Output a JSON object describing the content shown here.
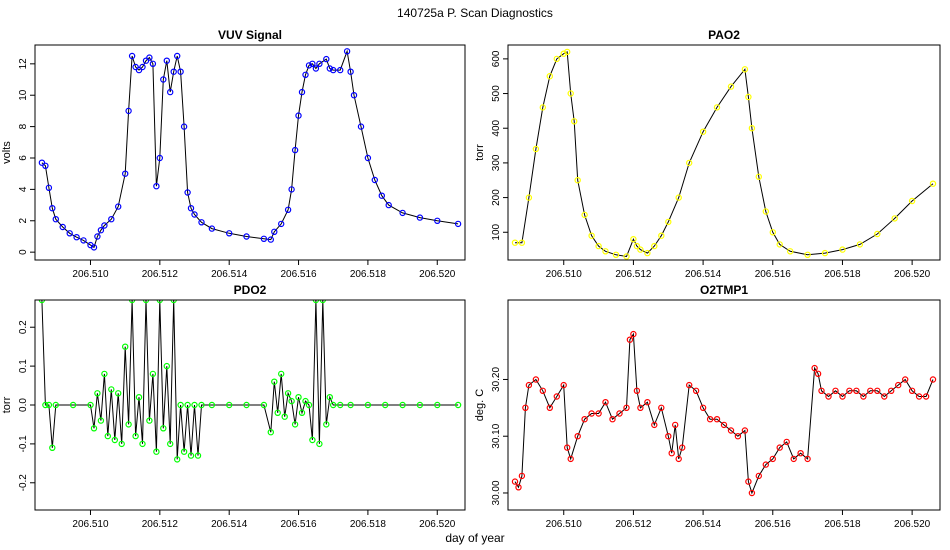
{
  "figure": {
    "title": "140725a   P. Scan Diagnostics",
    "xlabel": "day of year"
  },
  "colors": {
    "background": "#ffffff",
    "axis": "#000000",
    "line": "#000000",
    "vuv": "#0000ff",
    "pao2": "#ffff00",
    "pdo2": "#00ff00",
    "o2tmp1": "#ff0000"
  },
  "chart_data": [
    {
      "id": "vuv",
      "type": "line",
      "title": "VUV Signal",
      "ylabel": "volts",
      "xlim": [
        206.5084,
        206.5208
      ],
      "ylim": [
        -0.5,
        13.2
      ],
      "xticks": [
        206.51,
        206.512,
        206.514,
        206.516,
        206.518,
        206.52
      ],
      "xtick_labels": [
        "206.510",
        "206.512",
        "206.514",
        "206.516",
        "206.518",
        "206.520"
      ],
      "yticks": [
        0,
        2,
        4,
        6,
        8,
        10,
        12
      ],
      "ytick_labels": [
        "0",
        "2",
        "4",
        "6",
        "8",
        "10",
        "12"
      ],
      "marker": "circle",
      "color": "#0000ff",
      "x": [
        206.5086,
        206.5087,
        206.5088,
        206.5089,
        206.509,
        206.5092,
        206.5094,
        206.5096,
        206.5098,
        206.51,
        206.5101,
        206.5102,
        206.5103,
        206.5104,
        206.5106,
        206.5108,
        206.511,
        206.5111,
        206.5112,
        206.5113,
        206.5114,
        206.5115,
        206.5116,
        206.5117,
        206.5118,
        206.5119,
        206.512,
        206.5121,
        206.5122,
        206.5123,
        206.5124,
        206.5125,
        206.5126,
        206.5127,
        206.5128,
        206.5129,
        206.513,
        206.5132,
        206.5135,
        206.514,
        206.5145,
        206.515,
        206.5152,
        206.5153,
        206.5155,
        206.5157,
        206.5158,
        206.5159,
        206.516,
        206.5161,
        206.5162,
        206.5163,
        206.5164,
        206.5165,
        206.5166,
        206.5168,
        206.5169,
        206.517,
        206.5172,
        206.5174,
        206.5175,
        206.5176,
        206.5178,
        206.518,
        206.5182,
        206.5184,
        206.5186,
        206.519,
        206.5195,
        206.52,
        206.5206
      ],
      "y": [
        5.7,
        5.5,
        4.1,
        2.8,
        2.1,
        1.6,
        1.2,
        0.95,
        0.75,
        0.45,
        0.3,
        1.0,
        1.4,
        1.7,
        2.1,
        2.9,
        5.0,
        9.0,
        12.5,
        11.8,
        11.6,
        11.8,
        12.2,
        12.4,
        12.0,
        4.2,
        6.0,
        11.0,
        12.2,
        10.2,
        11.5,
        12.5,
        11.5,
        8.0,
        3.8,
        2.8,
        2.4,
        1.9,
        1.5,
        1.2,
        1.0,
        0.85,
        0.8,
        1.3,
        1.8,
        2.7,
        4.0,
        6.5,
        8.7,
        10.2,
        11.3,
        11.9,
        12.0,
        11.7,
        12.0,
        12.3,
        11.7,
        11.6,
        11.6,
        12.8,
        11.5,
        10.0,
        8.0,
        6.0,
        4.6,
        3.6,
        3.0,
        2.5,
        2.2,
        2.0,
        1.8
      ]
    },
    {
      "id": "pao2",
      "type": "line",
      "title": "PAO2",
      "ylabel": "torr",
      "xlim": [
        206.5084,
        206.5208
      ],
      "ylim": [
        20,
        640
      ],
      "xticks": [
        206.51,
        206.512,
        206.514,
        206.516,
        206.518,
        206.52
      ],
      "xtick_labels": [
        "206.510",
        "206.512",
        "206.514",
        "206.516",
        "206.518",
        "206.520"
      ],
      "yticks": [
        100,
        200,
        300,
        400,
        500,
        600
      ],
      "ytick_labels": [
        "100",
        "200",
        "300",
        "400",
        "500",
        "600"
      ],
      "marker": "circle",
      "color": "#ffff00",
      "x": [
        206.5086,
        206.5088,
        206.509,
        206.5092,
        206.5094,
        206.5096,
        206.5098,
        206.51,
        206.5101,
        206.5102,
        206.5103,
        206.5104,
        206.5106,
        206.5108,
        206.511,
        206.5112,
        206.5115,
        206.5118,
        206.512,
        206.5121,
        206.5122,
        206.5124,
        206.5126,
        206.5128,
        206.513,
        206.5133,
        206.5136,
        206.514,
        206.5144,
        206.5148,
        206.5152,
        206.5153,
        206.5154,
        206.5156,
        206.5158,
        206.516,
        206.5162,
        206.5165,
        206.517,
        206.5175,
        206.518,
        206.5185,
        206.519,
        206.5195,
        206.52,
        206.5206
      ],
      "y": [
        70,
        70,
        200,
        340,
        460,
        550,
        600,
        615,
        620,
        500,
        420,
        250,
        150,
        90,
        60,
        45,
        35,
        30,
        80,
        60,
        50,
        40,
        60,
        90,
        130,
        200,
        300,
        390,
        460,
        520,
        570,
        490,
        400,
        260,
        160,
        100,
        65,
        45,
        35,
        40,
        50,
        65,
        95,
        140,
        190,
        240
      ]
    },
    {
      "id": "pdo2",
      "type": "line",
      "title": "PDO2",
      "ylabel": "torr",
      "xlim": [
        206.5084,
        206.5208
      ],
      "ylim": [
        -0.27,
        0.27
      ],
      "xticks": [
        206.51,
        206.512,
        206.514,
        206.516,
        206.518,
        206.52
      ],
      "xtick_labels": [
        "206.510",
        "206.512",
        "206.514",
        "206.516",
        "206.518",
        "206.520"
      ],
      "yticks": [
        -0.2,
        -0.1,
        0.0,
        0.1,
        0.2
      ],
      "ytick_labels": [
        "-0.2",
        "-0.1",
        "0.0",
        "0.1",
        "0.2"
      ],
      "marker": "circle",
      "color": "#00ff00",
      "x": [
        206.5086,
        206.5087,
        206.5088,
        206.5089,
        206.509,
        206.5095,
        206.51,
        206.5101,
        206.5102,
        206.5103,
        206.5104,
        206.5105,
        206.5106,
        206.5107,
        206.5108,
        206.5109,
        206.511,
        206.5111,
        206.5112,
        206.5113,
        206.5114,
        206.5115,
        206.5116,
        206.5117,
        206.5118,
        206.5119,
        206.512,
        206.5121,
        206.5122,
        206.5123,
        206.5124,
        206.5125,
        206.5126,
        206.5127,
        206.5128,
        206.5129,
        206.513,
        206.5131,
        206.5132,
        206.5135,
        206.514,
        206.5145,
        206.515,
        206.5152,
        206.5153,
        206.5154,
        206.5155,
        206.5156,
        206.5157,
        206.5158,
        206.5159,
        206.516,
        206.5161,
        206.5162,
        206.5163,
        206.5164,
        206.5165,
        206.5166,
        206.5167,
        206.5168,
        206.5169,
        206.517,
        206.5172,
        206.5175,
        206.518,
        206.5185,
        206.519,
        206.5195,
        206.52,
        206.5206
      ],
      "y": [
        0.27,
        0.0,
        0.0,
        -0.11,
        0.0,
        0.0,
        0.0,
        -0.06,
        0.03,
        -0.04,
        0.08,
        -0.08,
        0.04,
        -0.09,
        0.03,
        -0.1,
        0.15,
        -0.05,
        0.27,
        -0.08,
        0.02,
        -0.1,
        0.27,
        -0.04,
        0.08,
        -0.12,
        0.27,
        -0.06,
        0.1,
        -0.1,
        0.27,
        -0.14,
        0.0,
        -0.12,
        0.0,
        -0.13,
        0.0,
        -0.13,
        0.0,
        0.0,
        0.0,
        0.0,
        0.0,
        -0.07,
        0.06,
        -0.02,
        0.08,
        -0.03,
        0.03,
        0.01,
        -0.05,
        0.02,
        -0.02,
        0.01,
        0.0,
        -0.09,
        0.27,
        -0.1,
        0.27,
        -0.05,
        0.02,
        0.0,
        0.0,
        0.0,
        0.0,
        0.0,
        0.0,
        0.0,
        0.0,
        0.0
      ]
    },
    {
      "id": "o2tmp1",
      "type": "line",
      "title": "O2TMP1",
      "ylabel": "deg. C",
      "xlim": [
        206.5084,
        206.5208
      ],
      "ylim": [
        29.97,
        30.34
      ],
      "xticks": [
        206.51,
        206.512,
        206.514,
        206.516,
        206.518,
        206.52
      ],
      "xtick_labels": [
        "206.510",
        "206.512",
        "206.514",
        "206.516",
        "206.518",
        "206.520"
      ],
      "yticks": [
        30.0,
        30.1,
        30.2
      ],
      "ytick_labels": [
        "30.00",
        "30.10",
        "30.20"
      ],
      "marker": "circle",
      "color": "#ff0000",
      "x": [
        206.5086,
        206.5087,
        206.5088,
        206.5089,
        206.509,
        206.5092,
        206.5094,
        206.5096,
        206.5098,
        206.51,
        206.5101,
        206.5102,
        206.5104,
        206.5106,
        206.5108,
        206.511,
        206.5112,
        206.5114,
        206.5116,
        206.5118,
        206.5119,
        206.512,
        206.5121,
        206.5122,
        206.5124,
        206.5126,
        206.5128,
        206.513,
        206.5131,
        206.5132,
        206.5133,
        206.5134,
        206.5136,
        206.5138,
        206.514,
        206.5142,
        206.5144,
        206.5146,
        206.5148,
        206.515,
        206.5152,
        206.5153,
        206.5154,
        206.5156,
        206.5158,
        206.516,
        206.5162,
        206.5164,
        206.5166,
        206.5168,
        206.517,
        206.5172,
        206.5173,
        206.5174,
        206.5176,
        206.5178,
        206.518,
        206.5182,
        206.5184,
        206.5186,
        206.5188,
        206.519,
        206.5192,
        206.5194,
        206.5196,
        206.5198,
        206.52,
        206.5202,
        206.5204,
        206.5206
      ],
      "y": [
        30.02,
        30.01,
        30.03,
        30.15,
        30.19,
        30.2,
        30.18,
        30.15,
        30.17,
        30.19,
        30.08,
        30.06,
        30.1,
        30.13,
        30.14,
        30.14,
        30.16,
        30.13,
        30.14,
        30.15,
        30.27,
        30.28,
        30.18,
        30.15,
        30.16,
        30.12,
        30.15,
        30.1,
        30.07,
        30.12,
        30.06,
        30.08,
        30.19,
        30.18,
        30.15,
        30.13,
        30.13,
        30.12,
        30.11,
        30.1,
        30.11,
        30.02,
        30.0,
        30.03,
        30.05,
        30.06,
        30.08,
        30.09,
        30.06,
        30.07,
        30.06,
        30.22,
        30.21,
        30.18,
        30.17,
        30.18,
        30.17,
        30.18,
        30.18,
        30.17,
        30.18,
        30.18,
        30.17,
        30.18,
        30.19,
        30.2,
        30.18,
        30.17,
        30.17,
        30.2
      ]
    }
  ]
}
